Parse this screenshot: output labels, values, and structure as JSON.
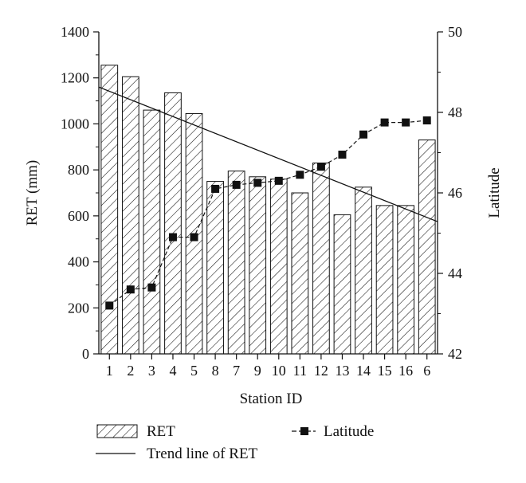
{
  "chart_data": {
    "type": "bar",
    "title": "",
    "xlabel": "Station ID",
    "ylabel": "RET (mm)",
    "y2label": "Latitude",
    "categories": [
      "1",
      "2",
      "3",
      "4",
      "5",
      "8",
      "7",
      "9",
      "10",
      "11",
      "12",
      "13",
      "14",
      "15",
      "16",
      "6"
    ],
    "ylim": [
      0,
      1400
    ],
    "y2lim": [
      42,
      50
    ],
    "yticks": [
      0,
      200,
      400,
      600,
      800,
      1000,
      1200,
      1400
    ],
    "y2ticks": [
      42,
      44,
      46,
      48,
      50
    ],
    "grid": false,
    "series": [
      {
        "name": "RET",
        "type": "bar",
        "axis": "left",
        "pattern": "diagonal-hatch",
        "values": [
          1255,
          1205,
          1060,
          1135,
          1045,
          750,
          795,
          770,
          760,
          700,
          830,
          605,
          725,
          645,
          645,
          930
        ]
      },
      {
        "name": "Latitude",
        "type": "line",
        "axis": "right",
        "marker": "square",
        "line_style": "dashed",
        "values": [
          43.2,
          43.6,
          43.65,
          44.9,
          44.9,
          46.1,
          46.2,
          46.25,
          46.3,
          46.45,
          46.65,
          46.95,
          47.45,
          47.75,
          47.75,
          47.8
        ]
      },
      {
        "name": "Trend line of RET",
        "type": "trend",
        "axis": "left",
        "start_value": 1160,
        "end_value": 575
      }
    ],
    "legend": {
      "placement": "bottom",
      "items": [
        {
          "label": "RET",
          "symbol": "hatched-box"
        },
        {
          "label": "Latitude",
          "symbol": "line-square"
        },
        {
          "label": "Trend line of RET",
          "symbol": "line"
        }
      ]
    },
    "colors": {
      "ink": "#111111",
      "bar_fill": "#ffffff"
    }
  }
}
